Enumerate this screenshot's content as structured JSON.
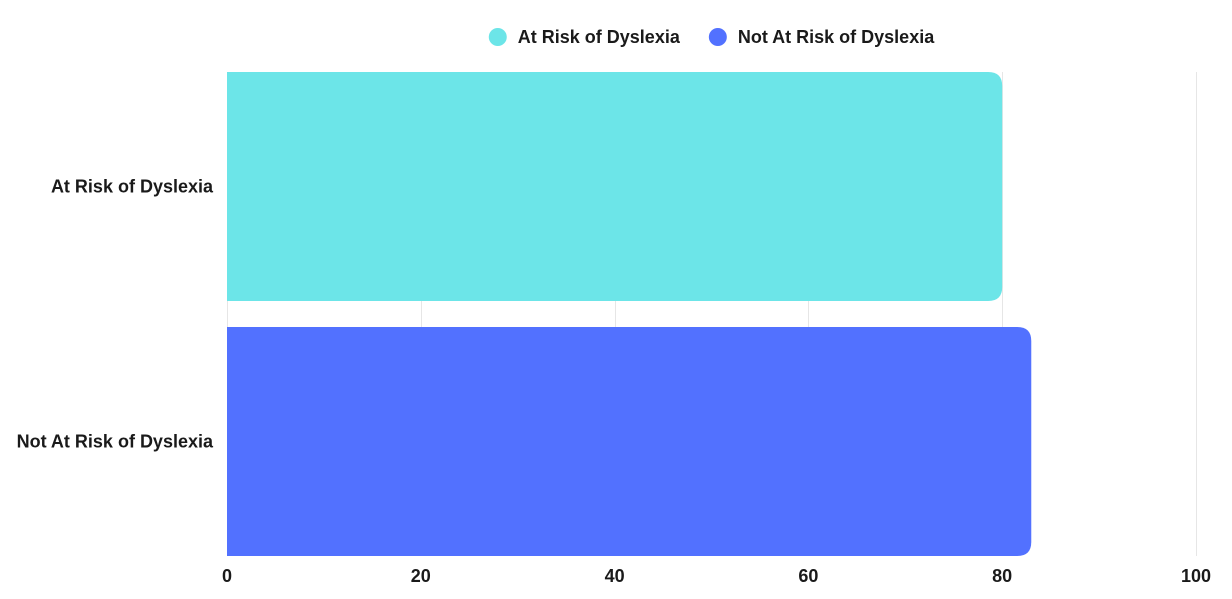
{
  "chart_data": {
    "type": "bar",
    "orientation": "horizontal",
    "categories": [
      "At Risk of Dyslexia",
      "Not At Risk of Dyslexia"
    ],
    "series": [
      {
        "name": "At Risk of Dyslexia",
        "color": "#6ce5e8",
        "values": [
          80,
          null
        ]
      },
      {
        "name": "Not At Risk of Dyslexia",
        "color": "#5271ff",
        "values": [
          null,
          83
        ]
      }
    ],
    "xlim": [
      0,
      100
    ],
    "xticks": [
      0,
      20,
      40,
      60,
      80,
      100
    ],
    "grid": true,
    "legend_position": "top-center"
  }
}
